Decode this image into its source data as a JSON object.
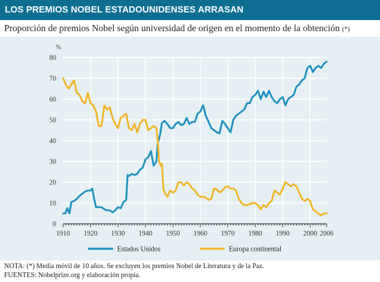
{
  "header": {
    "title": "LOS PREMIOS NOBEL ESTADOUNIDENSES ARRASAN"
  },
  "subtitle": {
    "text": "Proporción de premios Nobel según universidad de origen en el momento de la obtención",
    "marker": "(*)"
  },
  "notes": {
    "nota": "NOTA: (*) Media móvil de 10 años. Se excluyen los premios Nobel de Literatura y de la Paz.",
    "fuentes": "FUENTES: Nobelprize.org y elaboración propia."
  },
  "chart_data": {
    "type": "line",
    "title": "",
    "ylabel": "%",
    "xlabel": "",
    "xlim": [
      1910,
      2006
    ],
    "ylim": [
      0,
      80
    ],
    "x_ticks": [
      1910,
      1920,
      1930,
      1940,
      1950,
      1960,
      1970,
      1980,
      1990,
      2000,
      2006
    ],
    "y_ticks": [
      0,
      10,
      20,
      30,
      40,
      50,
      60,
      70,
      80
    ],
    "vertical_grid_at": [
      1920,
      1930,
      1940,
      1950,
      1960,
      1970,
      1980,
      1990,
      2000
    ],
    "legend_position": "bottom-center",
    "colors": {
      "Estados Unidos": "#1e8fbf",
      "Europa continental": "#f2b428"
    },
    "series": [
      {
        "name": "Estados Unidos",
        "points": [
          [
            1910,
            5
          ],
          [
            1910.8,
            5
          ],
          [
            1911.5,
            7.5
          ],
          [
            1912.3,
            5
          ],
          [
            1913,
            10.5
          ],
          [
            1914,
            11
          ],
          [
            1915,
            12
          ],
          [
            1916,
            13.5
          ],
          [
            1917,
            14.5
          ],
          [
            1918,
            15.5
          ],
          [
            1919,
            16
          ],
          [
            1920,
            16
          ],
          [
            1920.6,
            17
          ],
          [
            1921.3,
            12
          ],
          [
            1922,
            8
          ],
          [
            1923,
            8
          ],
          [
            1924,
            8
          ],
          [
            1925,
            7
          ],
          [
            1926,
            6.5
          ],
          [
            1927,
            6.5
          ],
          [
            1928,
            5.5
          ],
          [
            1929,
            6.5
          ],
          [
            1930,
            8
          ],
          [
            1931,
            7.5
          ],
          [
            1932,
            10.5
          ],
          [
            1933,
            11.5
          ],
          [
            1933.5,
            23.5
          ],
          [
            1934,
            23
          ],
          [
            1935,
            24
          ],
          [
            1936,
            23.5
          ],
          [
            1937,
            24
          ],
          [
            1938,
            26
          ],
          [
            1939,
            27
          ],
          [
            1940,
            31
          ],
          [
            1941,
            32
          ],
          [
            1942,
            35
          ],
          [
            1943,
            28
          ],
          [
            1944,
            30
          ],
          [
            1944.5,
            39
          ],
          [
            1945,
            41
          ],
          [
            1945.5,
            44
          ],
          [
            1946,
            48.5
          ],
          [
            1947,
            49.5
          ],
          [
            1948,
            48
          ],
          [
            1949,
            46
          ],
          [
            1950,
            46
          ],
          [
            1951,
            48
          ],
          [
            1952,
            49
          ],
          [
            1953,
            47.5
          ],
          [
            1954,
            48
          ],
          [
            1955,
            51
          ],
          [
            1956,
            48
          ],
          [
            1957,
            49
          ],
          [
            1958,
            49
          ],
          [
            1959,
            53
          ],
          [
            1960,
            54
          ],
          [
            1961,
            57
          ],
          [
            1962,
            52
          ],
          [
            1963,
            49
          ],
          [
            1964,
            46
          ],
          [
            1965,
            45
          ],
          [
            1966,
            44
          ],
          [
            1967,
            43.5
          ],
          [
            1968,
            49.5
          ],
          [
            1969,
            48
          ],
          [
            1970,
            46
          ],
          [
            1971,
            44
          ],
          [
            1972,
            50
          ],
          [
            1973,
            52
          ],
          [
            1974,
            53
          ],
          [
            1975,
            54
          ],
          [
            1976,
            55
          ],
          [
            1977,
            58
          ],
          [
            1978,
            58
          ],
          [
            1979,
            61
          ],
          [
            1980,
            62
          ],
          [
            1981,
            64
          ],
          [
            1982,
            60
          ],
          [
            1983,
            63.5
          ],
          [
            1984,
            61
          ],
          [
            1985,
            64
          ],
          [
            1986,
            61
          ],
          [
            1987,
            59
          ],
          [
            1988,
            58
          ],
          [
            1989,
            60
          ],
          [
            1990,
            61
          ],
          [
            1991,
            57
          ],
          [
            1992,
            60
          ],
          [
            1993,
            61
          ],
          [
            1994,
            62
          ],
          [
            1995,
            66
          ],
          [
            1996,
            67
          ],
          [
            1997,
            69
          ],
          [
            1998,
            70
          ],
          [
            1999,
            75
          ],
          [
            2000,
            76
          ],
          [
            2001,
            73
          ],
          [
            2002,
            75
          ],
          [
            2003,
            76
          ],
          [
            2004,
            75
          ],
          [
            2005,
            77
          ],
          [
            2006,
            78
          ]
        ]
      },
      {
        "name": "Europa continental",
        "points": [
          [
            1910,
            70
          ],
          [
            1911,
            67
          ],
          [
            1912,
            65
          ],
          [
            1913,
            67
          ],
          [
            1914,
            69
          ],
          [
            1915,
            63
          ],
          [
            1916,
            62
          ],
          [
            1917,
            59
          ],
          [
            1918,
            58
          ],
          [
            1919,
            63
          ],
          [
            1920,
            58
          ],
          [
            1921,
            57
          ],
          [
            1922,
            54
          ],
          [
            1923,
            47
          ],
          [
            1924,
            47
          ],
          [
            1925,
            57
          ],
          [
            1926,
            55
          ],
          [
            1927,
            56
          ],
          [
            1928,
            51
          ],
          [
            1929,
            48
          ],
          [
            1930,
            46
          ],
          [
            1931,
            51
          ],
          [
            1932,
            52
          ],
          [
            1933,
            53
          ],
          [
            1934,
            46
          ],
          [
            1935,
            45
          ],
          [
            1936,
            48
          ],
          [
            1937,
            44
          ],
          [
            1938,
            48
          ],
          [
            1939,
            50
          ],
          [
            1940,
            50
          ],
          [
            1941,
            45
          ],
          [
            1942,
            46
          ],
          [
            1943,
            47
          ],
          [
            1944,
            46
          ],
          [
            1944.5,
            40
          ],
          [
            1945,
            30
          ],
          [
            1945.5,
            28
          ],
          [
            1946,
            29
          ],
          [
            1946.5,
            17
          ],
          [
            1947,
            15
          ],
          [
            1948,
            13
          ],
          [
            1949,
            16
          ],
          [
            1950,
            15
          ],
          [
            1951,
            16
          ],
          [
            1952,
            20
          ],
          [
            1953,
            20
          ],
          [
            1954,
            18.5
          ],
          [
            1955,
            20
          ],
          [
            1956,
            19
          ],
          [
            1957,
            17
          ],
          [
            1958,
            16
          ],
          [
            1959,
            14
          ],
          [
            1960,
            13
          ],
          [
            1961,
            13
          ],
          [
            1962,
            12.5
          ],
          [
            1963,
            11.5
          ],
          [
            1964,
            12
          ],
          [
            1965,
            17
          ],
          [
            1966,
            16.5
          ],
          [
            1967,
            15
          ],
          [
            1968,
            16
          ],
          [
            1969,
            17.5
          ],
          [
            1970,
            18
          ],
          [
            1971,
            17
          ],
          [
            1972,
            17
          ],
          [
            1973,
            16
          ],
          [
            1974,
            12
          ],
          [
            1975,
            10
          ],
          [
            1976,
            9
          ],
          [
            1977,
            9
          ],
          [
            1978,
            9.5
          ],
          [
            1979,
            10
          ],
          [
            1980,
            10
          ],
          [
            1981,
            9
          ],
          [
            1982,
            7
          ],
          [
            1983,
            9
          ],
          [
            1984,
            8
          ],
          [
            1985,
            10
          ],
          [
            1986,
            11
          ],
          [
            1987,
            16
          ],
          [
            1988,
            15
          ],
          [
            1989,
            14
          ],
          [
            1990,
            17
          ],
          [
            1991,
            20
          ],
          [
            1992,
            19
          ],
          [
            1993,
            18
          ],
          [
            1994,
            19
          ],
          [
            1995,
            18
          ],
          [
            1996,
            15
          ],
          [
            1997,
            12
          ],
          [
            1998,
            11
          ],
          [
            1999,
            12
          ],
          [
            2000,
            11
          ],
          [
            2001,
            7
          ],
          [
            2002,
            6
          ],
          [
            2003,
            5
          ],
          [
            2004,
            4
          ],
          [
            2005,
            5
          ],
          [
            2006,
            5
          ]
        ]
      }
    ]
  }
}
